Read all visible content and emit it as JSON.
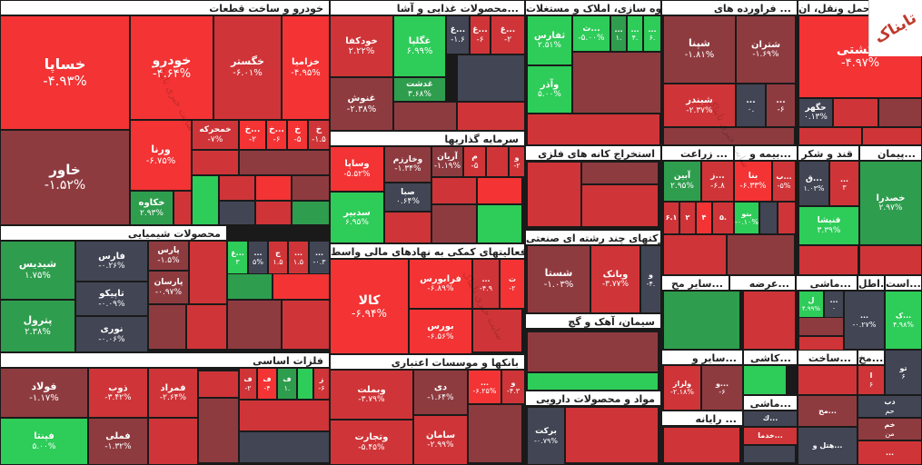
{
  "colors": {
    "deep_red": "#f33334",
    "red": "#cf3538",
    "dark_red": "#8e3b40",
    "neutral": "#414554",
    "green": "#2ecc59",
    "dark_green": "#2f9d4e",
    "header_bg": "#ffffff"
  },
  "logo": {
    "text": "تابناک"
  },
  "watermark": {
    "text": "سایت خبری تابناک"
  },
  "sectors": [
    {
      "label": "خودرو و ساخت قطعات"
    },
    {
      "label": "محصولات غذایی و آشا..."
    },
    {
      "label": "انبوه سازی، املاک و مستغلات"
    },
    {
      "label": "فراورده های ..."
    },
    {
      "label": "حمل ونقل، ان..."
    },
    {
      "label": "سرمایه گذاریها"
    },
    {
      "label": "استخراج کانه های فلزی"
    },
    {
      "label": "زراعت ..."
    },
    {
      "label": "بیمه و..."
    },
    {
      "label": "قند و شکر"
    },
    {
      "label": "پیمان..."
    },
    {
      "label": "محصولات شیمیایی"
    },
    {
      "label": "فعالیتهای کمکی به نهادهای مالی واسط"
    },
    {
      "label": "شرکتهای چند رشته ای صنعتی"
    },
    {
      "label": "سایر مح..."
    },
    {
      "label": "عرضه..."
    },
    {
      "label": "ماشی..."
    },
    {
      "label": "اطل..."
    },
    {
      "label": "است..."
    },
    {
      "label": "سیمان، آهک و گچ"
    },
    {
      "label": "فلزات اساسی"
    },
    {
      "label": "بانکها و موسسات اعتباری"
    },
    {
      "label": "سایر و..."
    },
    {
      "label": "کاشی..."
    },
    {
      "label": "ساخت..."
    },
    {
      "label": "مخ..."
    },
    {
      "label": "مواد و محصولات دارویی"
    },
    {
      "label": "رایانه ..."
    },
    {
      "label": "ماشی..."
    }
  ],
  "tiles": [
    {
      "name": "خساپا",
      "pct": "-۴.۹۳%"
    },
    {
      "name": "خودرو",
      "pct": "-۴.۶۴%"
    },
    {
      "name": "خگستر",
      "pct": "-۶.۰۱%"
    },
    {
      "name": "خزامیا",
      "pct": "-۴.۹۵%"
    },
    {
      "name": "خاور",
      "pct": "-۱.۵۲%"
    },
    {
      "name": "ورنا",
      "pct": "-۶.۷۵%"
    },
    {
      "name": "خکاوه",
      "pct": "۲.۹۳%"
    },
    {
      "name": "خمحرکه",
      "pct": "-۷%"
    },
    {
      "name": "خ...",
      "pct": "-۲"
    },
    {
      "name": "خ...",
      "pct": "-۶"
    },
    {
      "name": "خ",
      "pct": "-۵"
    },
    {
      "name": "خ",
      "pct": "-۱.۵"
    },
    {
      "name": "خودکفا",
      "pct": "۲.۲۲%"
    },
    {
      "name": "غگلپا",
      "pct": "۶.۹۹%"
    },
    {
      "name": "غ...",
      "pct": "-۱.۶"
    },
    {
      "name": "غ...",
      "pct": "-۶"
    },
    {
      "name": "غ...",
      "pct": "-۲"
    },
    {
      "name": "غنوش",
      "pct": "-۲.۳۸%"
    },
    {
      "name": "غدشت",
      "pct": "۳.۶۸%"
    },
    {
      "name": "ث...",
      "pct": "-۵.۰۰%"
    },
    {
      "name": "ثفارس",
      "pct": "۲.۵۱%"
    },
    {
      "name": "وآذر",
      "pct": "۵.۰۰%"
    },
    {
      "name": "...",
      "pct": "۱."
    },
    {
      "name": "...",
      "pct": "۴."
    },
    {
      "name": "...",
      "pct": "۶."
    },
    {
      "name": "شپنا",
      "pct": "-۱.۸۱%"
    },
    {
      "name": "شتران",
      "pct": "-۱.۶۹%"
    },
    {
      "name": "شبندر",
      "pct": "-۲.۳۷%"
    },
    {
      "name": "...",
      "pct": "۰."
    },
    {
      "name": "...",
      "pct": "-۶"
    },
    {
      "name": "حکشتی",
      "pct": "-۴.۹۷%"
    },
    {
      "name": "حگهر",
      "pct": "۰.۱۳%"
    },
    {
      "name": "وساپا",
      "pct": "-۵.۵۲%"
    },
    {
      "name": "وخارزم",
      "pct": "-۱.۳۴%"
    },
    {
      "name": "آریان",
      "pct": "-۱.۱۹%"
    },
    {
      "name": "م",
      "pct": "-۵"
    },
    {
      "name": "و",
      "pct": "-۲"
    },
    {
      "name": "صبا",
      "pct": "۰.۶۴%"
    },
    {
      "name": "سدبیر",
      "pct": "۶.۹۵%"
    },
    {
      "name": "آبین",
      "pct": "۲.۹۵%"
    },
    {
      "name": "ز...",
      "pct": "-۶.۸"
    },
    {
      "name": "بنا",
      "pct": "-۶.۳۳%"
    },
    {
      "name": "ب...",
      "pct": "-۵%"
    },
    {
      "name": "بنو",
      "pct": "-۰.۱۰%"
    },
    {
      "name": "۶.۱",
      "pct": ""
    },
    {
      "name": "۲",
      "pct": ""
    },
    {
      "name": "۴",
      "pct": ""
    },
    {
      "name": "۵.",
      "pct": ""
    },
    {
      "name": "ق...",
      "pct": "۱.۰۳%"
    },
    {
      "name": "...",
      "pct": "۳"
    },
    {
      "name": "قنیشا",
      "pct": "۳.۳۹%"
    },
    {
      "name": "خصدرا",
      "pct": "۲.۹۷%"
    },
    {
      "name": "شیدیس",
      "pct": "۱.۷۵%"
    },
    {
      "name": "فارس",
      "pct": "-۰.۲۶%"
    },
    {
      "name": "پارس",
      "pct": "-۱.۵%"
    },
    {
      "name": "پارسان",
      "pct": "-۰.۹۷%"
    },
    {
      "name": "تاپیکو",
      "pct": "-۰.۰۹%"
    },
    {
      "name": "نوری",
      "pct": "-۰.۰۶%"
    },
    {
      "name": "پترول",
      "pct": "۲.۳۸%"
    },
    {
      "name": "غ...",
      "pct": "۳"
    },
    {
      "name": "...",
      "pct": "۵%"
    },
    {
      "name": "ج",
      "pct": "۱.۵"
    },
    {
      "name": "...",
      "pct": "۱.۵"
    },
    {
      "name": "...",
      "pct": "-۰.۳"
    },
    {
      "name": "کالا",
      "pct": "-۶.۹۴%"
    },
    {
      "name": "فرابورس",
      "pct": "-۶.۸۹%"
    },
    {
      "name": "بورس",
      "pct": "-۶.۵۶%"
    },
    {
      "name": "...",
      "pct": "-۴.۹"
    },
    {
      "name": "ت",
      "pct": "-۲"
    },
    {
      "name": "شستا",
      "pct": "-۱.۰۳%"
    },
    {
      "name": "وبانک",
      "pct": "-۳.۷۷%"
    },
    {
      "name": "و",
      "pct": "-۴."
    },
    {
      "name": "ل",
      "pct": "۴.۹۹%"
    },
    {
      "name": "...",
      "pct": "۰"
    },
    {
      "name": "...",
      "pct": "-۰.۲۷%"
    },
    {
      "name": "ک...",
      "pct": "۴.۹۸%"
    },
    {
      "name": "فولاد",
      "pct": "-۱.۱۷%"
    },
    {
      "name": "ذوب",
      "pct": "-۳.۴۲%"
    },
    {
      "name": "فمراد",
      "pct": "-۲.۶۴%"
    },
    {
      "name": "ف",
      "pct": "-۲"
    },
    {
      "name": "ف",
      "pct": "-۴"
    },
    {
      "name": "ف",
      "pct": "۱."
    },
    {
      "name": "ز",
      "pct": "-۶"
    },
    {
      "name": "فپنتا",
      "pct": "۵.۰۰%"
    },
    {
      "name": "فملی",
      "pct": "-۱.۳۲%"
    },
    {
      "name": "وبملت",
      "pct": "-۳.۷۹%"
    },
    {
      "name": "دی",
      "pct": "-۱.۶۴%"
    },
    {
      "name": "...",
      "pct": "-۶.۲۵%"
    },
    {
      "name": "و",
      "pct": "-۴.۳"
    },
    {
      "name": "وتجارت",
      "pct": "-۵.۴۵%"
    },
    {
      "name": "سامان",
      "pct": "-۲.۹۹%"
    },
    {
      "name": "برکت",
      "pct": "-۰.۷۹%"
    },
    {
      "name": "ولراز",
      "pct": "-۲.۱۸%"
    },
    {
      "name": "و...",
      "pct": "-۶"
    },
    {
      "name": "ا",
      "pct": "۶"
    },
    {
      "name": "تو",
      "pct": "۶"
    },
    {
      "name": "دب",
      "pct": "حم"
    },
    {
      "name": "خم",
      "pct": "من"
    },
    {
      "name": "مح...",
      "pct": ""
    },
    {
      "name": "ك...",
      "pct": ""
    },
    {
      "name": "خدما...",
      "pct": ""
    },
    {
      "name": "هتل و...",
      "pct": ""
    },
    {
      "name": "...",
      "pct": ""
    }
  ]
}
